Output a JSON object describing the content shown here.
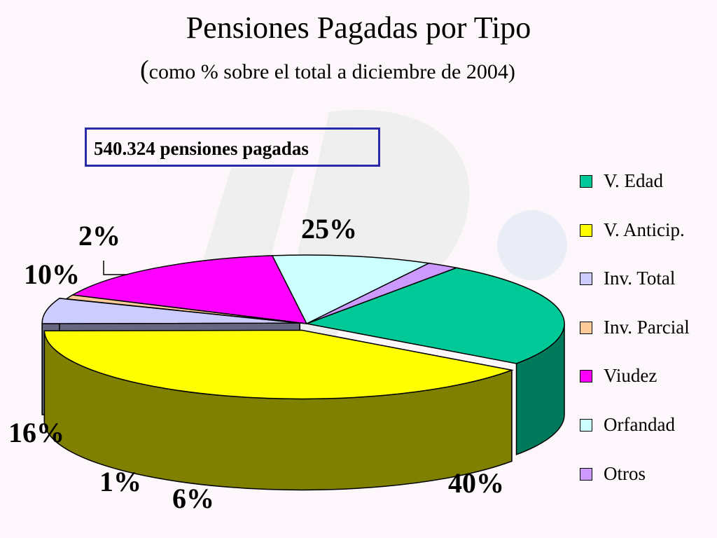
{
  "chart_data": {
    "type": "pie",
    "title": "Pensiones Pagadas por Tipo",
    "subtitle_open": "(",
    "subtitle_text": "como % sobre el total a diciembre de 2004)",
    "annotation": "540.324 pensiones pagadas",
    "legend_position": "right",
    "slices": [
      {
        "name": "V. Edad",
        "value": 25,
        "label": "25%",
        "top": "#00c896",
        "side": "#007a5a"
      },
      {
        "name": "V. Anticip.",
        "value": 40,
        "label": "40%",
        "top": "#ffff00",
        "side": "#808000"
      },
      {
        "name": "Inv. Total",
        "value": 6,
        "label": "6%",
        "top": "#ccccff",
        "side": "#666680"
      },
      {
        "name": "Inv. Parcial",
        "value": 1,
        "label": "1%",
        "top": "#ffcc99",
        "side": "#806650"
      },
      {
        "name": "Viudez",
        "value": 16,
        "label": "16%",
        "top": "#ff00ff",
        "side": "#800080"
      },
      {
        "name": "Orfandad",
        "value": 10,
        "label": "10%",
        "top": "#ccffff",
        "side": "#668080"
      },
      {
        "name": "Otros",
        "value": 2,
        "label": "2%",
        "top": "#cc99ff",
        "side": "#664d80"
      }
    ]
  }
}
